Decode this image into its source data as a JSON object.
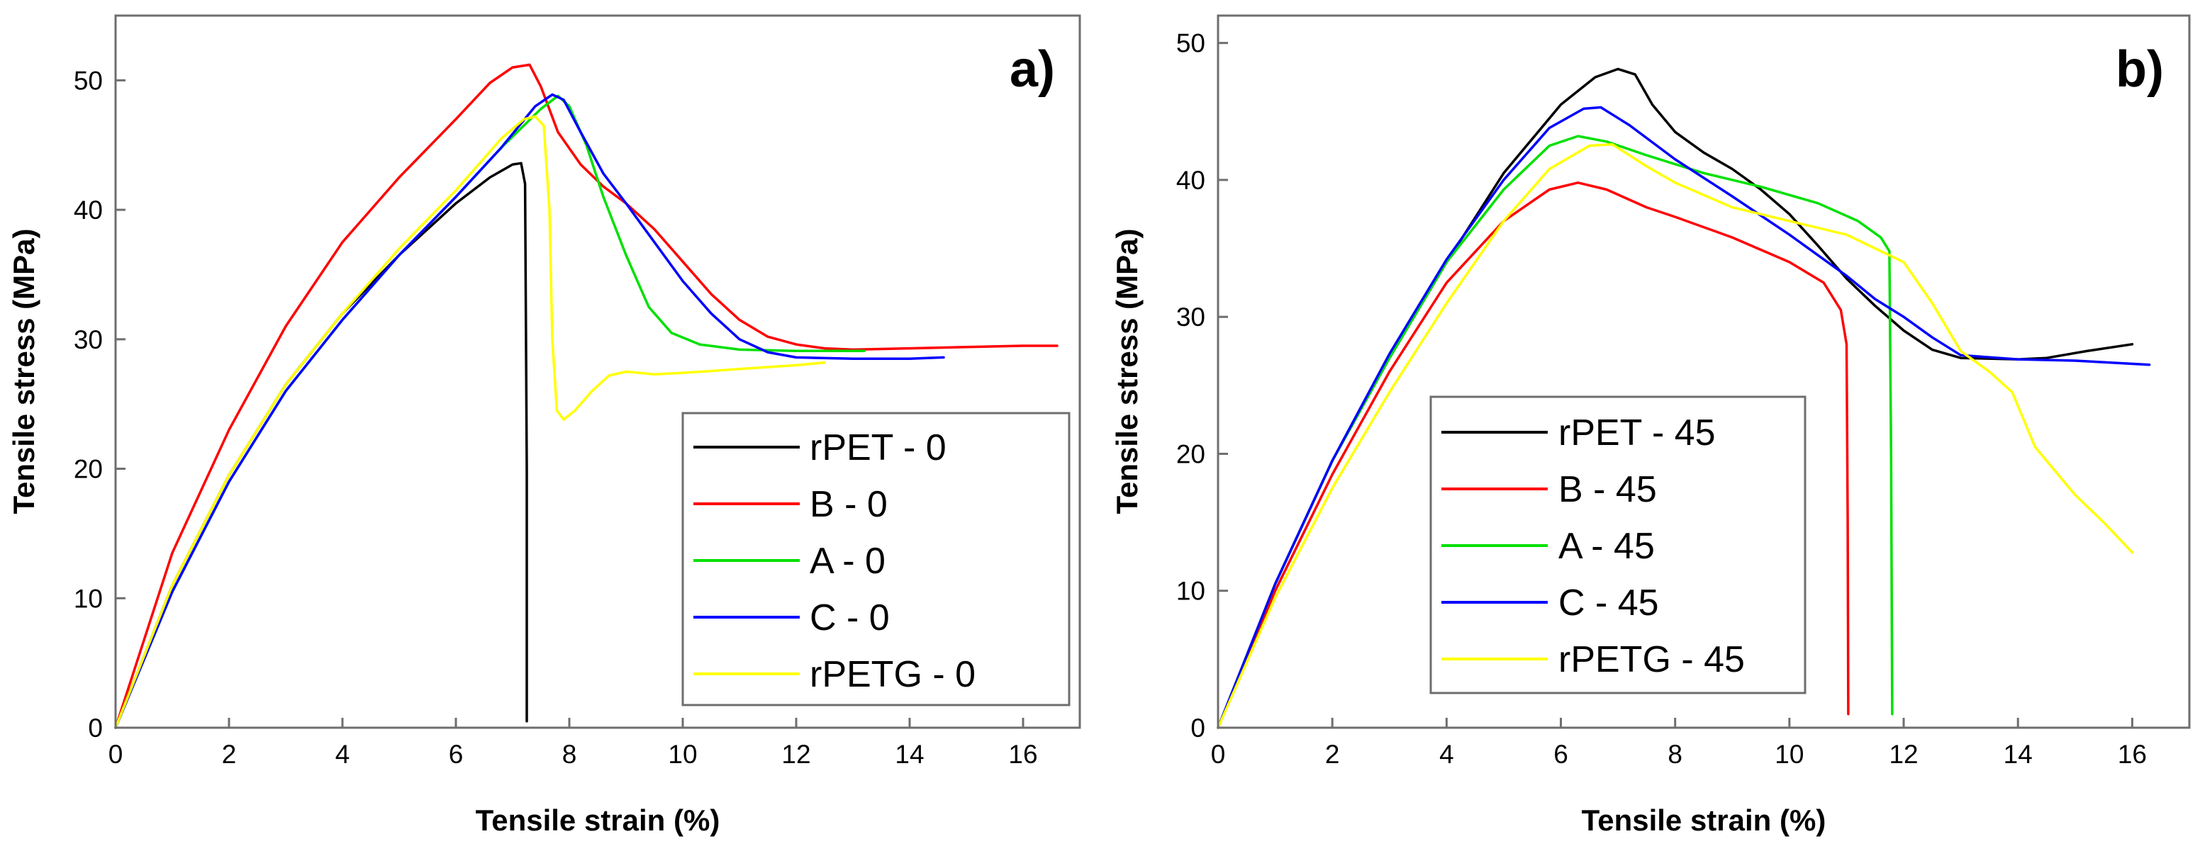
{
  "chart_data": [
    {
      "type": "line",
      "panel_label": "a)",
      "xlabel": "Tensile strain (%)",
      "ylabel": "Tensile stress (MPa)",
      "xlim": [
        0,
        17
      ],
      "ylim": [
        0,
        55
      ],
      "xticks": [
        0,
        2,
        4,
        6,
        8,
        10,
        12,
        14,
        16
      ],
      "yticks": [
        0,
        10,
        20,
        30,
        40,
        50
      ],
      "legend_position": "bottom-right",
      "series": [
        {
          "name": "rPET - 0",
          "color": "#000000",
          "points": [
            [
              0,
              0
            ],
            [
              1,
              11
            ],
            [
              2,
              19.5
            ],
            [
              3,
              26.5
            ],
            [
              4,
              32
            ],
            [
              5,
              36.5
            ],
            [
              6,
              40.5
            ],
            [
              6.6,
              42.5
            ],
            [
              7,
              43.5
            ],
            [
              7.15,
              43.6
            ],
            [
              7.22,
              42
            ],
            [
              7.25,
              20
            ],
            [
              7.25,
              0.5
            ]
          ]
        },
        {
          "name": "B - 0",
          "color": "#ff0000",
          "points": [
            [
              0,
              0
            ],
            [
              1,
              13.5
            ],
            [
              2,
              23
            ],
            [
              3,
              31
            ],
            [
              4,
              37.5
            ],
            [
              5,
              42.5
            ],
            [
              6,
              47
            ],
            [
              6.6,
              49.8
            ],
            [
              7,
              51
            ],
            [
              7.3,
              51.2
            ],
            [
              7.5,
              49.5
            ],
            [
              7.8,
              46
            ],
            [
              8.2,
              43.5
            ],
            [
              8.6,
              41.8
            ],
            [
              9,
              40.5
            ],
            [
              9.5,
              38.5
            ],
            [
              10,
              36
            ],
            [
              10.5,
              33.5
            ],
            [
              11,
              31.5
            ],
            [
              11.5,
              30.2
            ],
            [
              12,
              29.6
            ],
            [
              12.5,
              29.3
            ],
            [
              13,
              29.2
            ],
            [
              14,
              29.3
            ],
            [
              15,
              29.4
            ],
            [
              16,
              29.5
            ],
            [
              16.6,
              29.5
            ]
          ]
        },
        {
          "name": "A - 0",
          "color": "#00e000",
          "points": [
            [
              0,
              0
            ],
            [
              1,
              10.5
            ],
            [
              2,
              19
            ],
            [
              3,
              26
            ],
            [
              4,
              31.5
            ],
            [
              5,
              36.5
            ],
            [
              6,
              41
            ],
            [
              6.8,
              44.8
            ],
            [
              7.5,
              47.8
            ],
            [
              7.8,
              48.8
            ],
            [
              8,
              48
            ],
            [
              8.3,
              45
            ],
            [
              8.6,
              41
            ],
            [
              9,
              36.5
            ],
            [
              9.4,
              32.5
            ],
            [
              9.8,
              30.5
            ],
            [
              10.3,
              29.6
            ],
            [
              11,
              29.2
            ],
            [
              12,
              29.1
            ],
            [
              13.2,
              29.1
            ]
          ]
        },
        {
          "name": "C - 0",
          "color": "#0000ff",
          "points": [
            [
              0,
              0
            ],
            [
              1,
              10.5
            ],
            [
              2,
              19
            ],
            [
              3,
              26
            ],
            [
              4,
              31.5
            ],
            [
              5,
              36.5
            ],
            [
              6,
              41
            ],
            [
              6.8,
              44.8
            ],
            [
              7.4,
              48
            ],
            [
              7.7,
              48.9
            ],
            [
              7.9,
              48.5
            ],
            [
              8.2,
              46
            ],
            [
              8.6,
              42.8
            ],
            [
              9,
              40.5
            ],
            [
              9.5,
              37.5
            ],
            [
              10,
              34.5
            ],
            [
              10.5,
              32
            ],
            [
              11,
              30
            ],
            [
              11.5,
              29
            ],
            [
              12,
              28.6
            ],
            [
              13,
              28.5
            ],
            [
              14,
              28.5
            ],
            [
              14.6,
              28.6
            ]
          ]
        },
        {
          "name": "rPETG - 0",
          "color": "#ffff00",
          "points": [
            [
              0,
              0
            ],
            [
              1,
              11
            ],
            [
              2,
              19.5
            ],
            [
              3,
              26.5
            ],
            [
              4,
              32
            ],
            [
              5,
              37
            ],
            [
              6,
              41.5
            ],
            [
              6.8,
              45.5
            ],
            [
              7.2,
              47
            ],
            [
              7.4,
              47.2
            ],
            [
              7.55,
              46.5
            ],
            [
              7.65,
              40
            ],
            [
              7.7,
              30
            ],
            [
              7.78,
              24.5
            ],
            [
              7.9,
              23.8
            ],
            [
              8.1,
              24.5
            ],
            [
              8.4,
              26
            ],
            [
              8.7,
              27.2
            ],
            [
              9,
              27.5
            ],
            [
              9.5,
              27.3
            ],
            [
              10,
              27.4
            ],
            [
              11,
              27.7
            ],
            [
              12,
              28
            ],
            [
              12.5,
              28.2
            ]
          ]
        }
      ]
    },
    {
      "type": "line",
      "panel_label": "b)",
      "xlabel": "Tensile strain (%)",
      "ylabel": "Tensile stress (MPa)",
      "xlim": [
        0,
        17
      ],
      "ylim": [
        0,
        52
      ],
      "xticks": [
        0,
        2,
        4,
        6,
        8,
        10,
        12,
        14,
        16
      ],
      "yticks": [
        0,
        10,
        20,
        30,
        40,
        50
      ],
      "legend_position": "bottom-left",
      "series": [
        {
          "name": "rPET - 45",
          "color": "#000000",
          "points": [
            [
              0,
              0
            ],
            [
              1,
              10.5
            ],
            [
              2,
              19.5
            ],
            [
              3,
              27
            ],
            [
              4,
              34
            ],
            [
              5,
              40.5
            ],
            [
              6,
              45.5
            ],
            [
              6.6,
              47.5
            ],
            [
              7,
              48.1
            ],
            [
              7.3,
              47.7
            ],
            [
              7.6,
              45.5
            ],
            [
              8,
              43.5
            ],
            [
              8.5,
              42
            ],
            [
              9,
              40.8
            ],
            [
              9.5,
              39.3
            ],
            [
              10,
              37.5
            ],
            [
              10.5,
              35.2
            ],
            [
              11,
              32.8
            ],
            [
              11.5,
              30.8
            ],
            [
              12,
              29
            ],
            [
              12.5,
              27.6
            ],
            [
              13,
              27
            ],
            [
              14,
              26.9
            ],
            [
              14.5,
              27
            ],
            [
              15.2,
              27.5
            ],
            [
              16,
              28
            ]
          ]
        },
        {
          "name": "B - 45",
          "color": "#ff0000",
          "points": [
            [
              0,
              0
            ],
            [
              1,
              10
            ],
            [
              2,
              18.5
            ],
            [
              3,
              26
            ],
            [
              4,
              32.5
            ],
            [
              5,
              37
            ],
            [
              5.8,
              39.3
            ],
            [
              6.3,
              39.8
            ],
            [
              6.8,
              39.3
            ],
            [
              7.5,
              38
            ],
            [
              8,
              37.3
            ],
            [
              9,
              35.8
            ],
            [
              10,
              34
            ],
            [
              10.6,
              32.5
            ],
            [
              10.9,
              30.5
            ],
            [
              11,
              28
            ],
            [
              11.02,
              15
            ],
            [
              11.03,
              1
            ]
          ]
        },
        {
          "name": "A - 45",
          "color": "#00e000",
          "points": [
            [
              0,
              0
            ],
            [
              1,
              10.5
            ],
            [
              2,
              19.5
            ],
            [
              3,
              27
            ],
            [
              4,
              34
            ],
            [
              5,
              39.3
            ],
            [
              5.8,
              42.5
            ],
            [
              6.3,
              43.2
            ],
            [
              6.8,
              42.8
            ],
            [
              7.5,
              41.8
            ],
            [
              8.5,
              40.5
            ],
            [
              9.5,
              39.5
            ],
            [
              10.5,
              38.3
            ],
            [
              11.2,
              37
            ],
            [
              11.6,
              35.8
            ],
            [
              11.75,
              34.8
            ],
            [
              11.78,
              20
            ],
            [
              11.8,
              1
            ]
          ]
        },
        {
          "name": "C - 45",
          "color": "#0000ff",
          "points": [
            [
              0,
              0
            ],
            [
              1,
              10.5
            ],
            [
              2,
              19.5
            ],
            [
              3,
              27.3
            ],
            [
              4,
              34.2
            ],
            [
              5,
              40
            ],
            [
              5.8,
              43.8
            ],
            [
              6.4,
              45.2
            ],
            [
              6.7,
              45.3
            ],
            [
              7.2,
              44
            ],
            [
              8,
              41.5
            ],
            [
              9,
              38.8
            ],
            [
              10,
              36
            ],
            [
              11,
              33
            ],
            [
              11.5,
              31.3
            ],
            [
              12,
              30
            ],
            [
              12.5,
              28.5
            ],
            [
              13,
              27.2
            ],
            [
              14,
              26.9
            ],
            [
              15,
              26.8
            ],
            [
              16.3,
              26.5
            ]
          ]
        },
        {
          "name": "rPETG - 45",
          "color": "#ffff00",
          "points": [
            [
              0,
              0
            ],
            [
              1,
              9.5
            ],
            [
              2,
              17.5
            ],
            [
              3,
              24.5
            ],
            [
              4,
              31
            ],
            [
              5,
              37
            ],
            [
              5.8,
              40.8
            ],
            [
              6.5,
              42.5
            ],
            [
              6.9,
              42.6
            ],
            [
              7.5,
              41
            ],
            [
              8,
              39.8
            ],
            [
              9,
              38
            ],
            [
              10,
              37
            ],
            [
              11,
              36
            ],
            [
              12,
              34
            ],
            [
              12.5,
              31
            ],
            [
              13,
              27.5
            ],
            [
              13.5,
              26
            ],
            [
              13.9,
              24.5
            ],
            [
              14.3,
              20.5
            ],
            [
              15,
              17
            ],
            [
              15.5,
              15
            ],
            [
              16,
              12.8
            ]
          ]
        }
      ]
    }
  ]
}
